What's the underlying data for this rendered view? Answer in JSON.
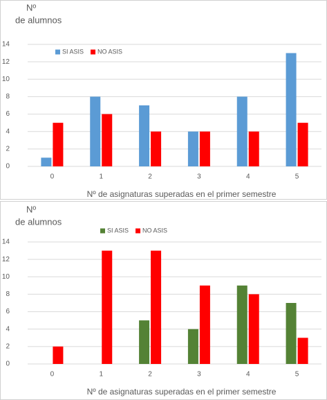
{
  "chart_data": [
    {
      "type": "bar",
      "ylabel": [
        "Nº",
        "de alumnos"
      ],
      "xlabel": "Nº de asignaturas superadas en el primer semestre",
      "categories": [
        "0",
        "1",
        "2",
        "3",
        "4",
        "5"
      ],
      "series": [
        {
          "name": "SI ASIS",
          "color": "#5b9bd5",
          "values": [
            1,
            8,
            7,
            4,
            8,
            13
          ]
        },
        {
          "name": "NO ASIS",
          "color": "#ff0000",
          "values": [
            5,
            6,
            4,
            4,
            4,
            5
          ]
        }
      ],
      "ylim": [
        0,
        14
      ],
      "yticks": [
        0,
        2,
        4,
        6,
        8,
        10,
        12,
        14
      ],
      "grid": true
    },
    {
      "type": "bar",
      "ylabel": [
        "Nº",
        "de alumnos"
      ],
      "xlabel": "Nº de asignaturas superadas en el primer semestre",
      "categories": [
        "0",
        "1",
        "2",
        "3",
        "4",
        "5"
      ],
      "series": [
        {
          "name": "SI ASIS",
          "color": "#548235",
          "values": [
            0,
            0,
            5,
            4,
            9,
            7
          ]
        },
        {
          "name": "NO ASIS",
          "color": "#ff0000",
          "values": [
            2,
            13,
            13,
            9,
            8,
            3
          ]
        }
      ],
      "ylim": [
        0,
        14
      ],
      "yticks": [
        0,
        2,
        4,
        6,
        8,
        10,
        12,
        14
      ],
      "grid": true
    }
  ]
}
